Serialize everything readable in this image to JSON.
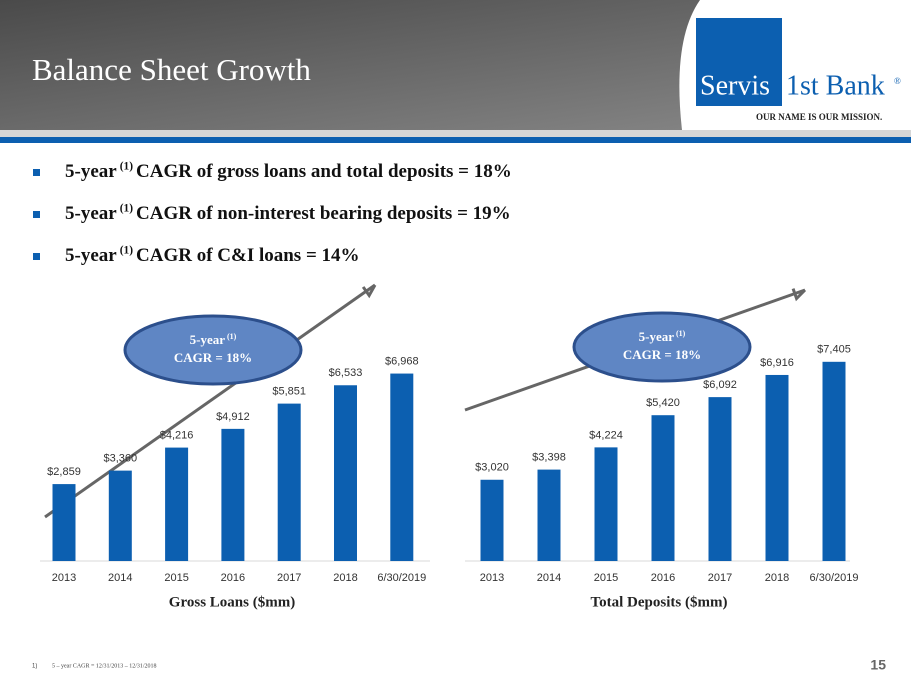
{
  "header": {
    "title": "Balance Sheet Growth"
  },
  "logo": {
    "name_a": "Servis",
    "name_b": "1st Bank",
    "mark": "®",
    "tagline": "OUR NAME IS OUR MISSION."
  },
  "bullets": [
    {
      "pre": "5-year",
      "sup": "(1)",
      "post": "CAGR of gross loans and total deposits = 18%"
    },
    {
      "pre": "5-year",
      "sup": "(1)",
      "post": "CAGR of non-interest bearing deposits = 19%"
    },
    {
      "pre": "5-year",
      "sup": "(1)",
      "post": "CAGR of C&I loans = 14%"
    }
  ],
  "chart_data": [
    {
      "type": "bar",
      "x_label": "Gross Loans ($mm)",
      "color": "#0c5fb0",
      "annotation": {
        "pre": "5-year",
        "sup": "(1)",
        "post": "CAGR = 18%"
      },
      "categories": [
        "2013",
        "2014",
        "2015",
        "2016",
        "2017",
        "2018",
        "6/30/2019"
      ],
      "values": [
        2859,
        3360,
        4216,
        4912,
        5851,
        6533,
        6968
      ],
      "value_labels": [
        "$2,859",
        "$3,360",
        "$4,216",
        "$4,912",
        "$5,851",
        "$6,533",
        "$6,968"
      ]
    },
    {
      "type": "bar",
      "x_label": "Total Deposits ($mm)",
      "color": "#0c5fb0",
      "annotation": {
        "pre": "5-year",
        "sup": "(1)",
        "post": "CAGR = 18%"
      },
      "categories": [
        "2013",
        "2014",
        "2015",
        "2016",
        "2017",
        "2018",
        "6/30/2019"
      ],
      "values": [
        3020,
        3398,
        4224,
        5420,
        6092,
        6916,
        7405
      ],
      "value_labels": [
        "$3,020",
        "$3,398",
        "$4,224",
        "$5,420",
        "$6,092",
        "$6,916",
        "$7,405"
      ]
    }
  ],
  "footnote": {
    "marker": "1)",
    "text": "5 – year CAGR = 12/31/2013 – 12/31/2018"
  },
  "page_number": "15"
}
